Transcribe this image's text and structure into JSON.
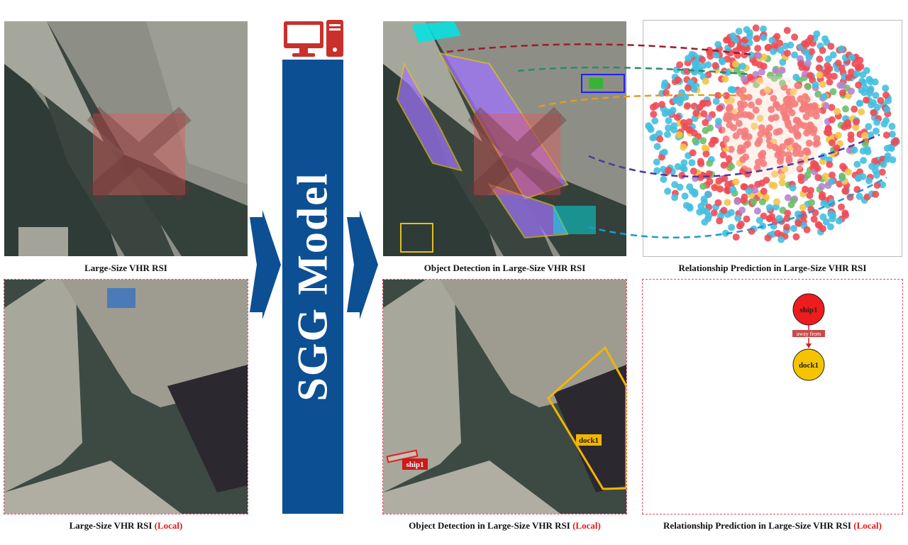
{
  "model": {
    "label": "SGG Model",
    "bar_color": "#0d4f93",
    "icon": "computer-icon",
    "icon_color": "#c9302c"
  },
  "captions": {
    "input_global": "Large-Size VHR RSI",
    "input_local": "Large-Size VHR RSI",
    "detection_global": "Object Detection in Large-Size VHR RSI",
    "detection_local": "Object Detection in Large-Size VHR RSI",
    "relation_global": "Relationship Prediction in Large-Size VHR RSI",
    "relation_local": "Relationship Prediction in Large-Size VHR RSI",
    "local_tag": "(Local)"
  },
  "detections": {
    "ship": "ship1",
    "dock": "dock1"
  },
  "relation_graph": {
    "subject": "ship1",
    "predicate": "away from",
    "object": "dock1",
    "subject_color": "#ee1c1c",
    "object_color": "#f5c400"
  },
  "colors": {
    "arrow": "#0d4f93",
    "local_frame": "#e0506a",
    "highlight": "#e05a5a"
  }
}
